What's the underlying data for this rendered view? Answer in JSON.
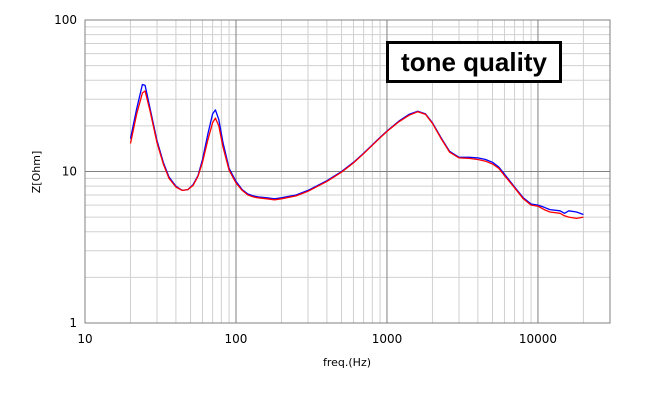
{
  "chart_data": {
    "type": "line",
    "title": "",
    "annotation": "tone quality",
    "xlabel": "freq.(Hz)",
    "ylabel": "Z[Ohm]",
    "xscale": "log",
    "yscale": "log",
    "xlim": [
      10,
      30000
    ],
    "ylim": [
      1,
      100
    ],
    "xticks": [
      10,
      100,
      1000,
      10000
    ],
    "xtick_labels": [
      "10",
      "100",
      "1000",
      "10000"
    ],
    "yticks": [
      1,
      10,
      100
    ],
    "ytick_labels": [
      "1",
      "10",
      "100"
    ],
    "grid": true,
    "legend": "none",
    "series": [
      {
        "color": "#0000ff",
        "x": [
          20,
          22,
          24,
          25,
          27,
          30,
          33,
          36,
          40,
          44,
          48,
          52,
          56,
          60,
          65,
          70,
          73,
          77,
          82,
          90,
          100,
          110,
          120,
          130,
          140,
          160,
          180,
          200,
          250,
          300,
          400,
          500,
          600,
          700,
          800,
          900,
          1000,
          1200,
          1400,
          1600,
          1800,
          2000,
          2300,
          2600,
          3000,
          3500,
          4000,
          4500,
          5000,
          5500,
          6000,
          7000,
          8000,
          9000,
          10000,
          11000,
          12000,
          14000,
          15000,
          16000,
          18000,
          20000
        ],
        "y": [
          16.5,
          26,
          37.5,
          37,
          26,
          16,
          11.5,
          9.2,
          8.0,
          7.5,
          7.6,
          8.2,
          9.4,
          12.0,
          17.5,
          24.0,
          25.5,
          22,
          15.5,
          10.5,
          8.6,
          7.6,
          7.1,
          6.9,
          6.8,
          6.7,
          6.6,
          6.7,
          7.0,
          7.5,
          8.7,
          10.0,
          11.5,
          13.2,
          15.0,
          16.8,
          18.5,
          21.5,
          23.8,
          25.0,
          24.0,
          21.0,
          16.5,
          13.6,
          12.4,
          12.4,
          12.3,
          12.0,
          11.5,
          10.7,
          9.6,
          7.9,
          6.7,
          6.1,
          6.0,
          5.8,
          5.6,
          5.5,
          5.3,
          5.5,
          5.4,
          5.2
        ]
      },
      {
        "color": "#ff0000",
        "x": [
          20,
          22,
          24,
          25,
          27,
          30,
          33,
          36,
          40,
          44,
          48,
          52,
          56,
          60,
          65,
          70,
          73,
          77,
          82,
          90,
          100,
          110,
          120,
          130,
          140,
          160,
          180,
          200,
          250,
          300,
          400,
          500,
          600,
          700,
          800,
          900,
          1000,
          1200,
          1400,
          1600,
          1800,
          2000,
          2300,
          2600,
          3000,
          3500,
          4000,
          4500,
          5000,
          5500,
          6000,
          7000,
          8000,
          9000,
          10000,
          11000,
          12000,
          14000,
          15000,
          16000,
          18000,
          20000
        ],
        "y": [
          15.3,
          24,
          33,
          34,
          25,
          15.5,
          11.2,
          9.0,
          7.9,
          7.5,
          7.6,
          8.1,
          9.3,
          11.5,
          16.0,
          21.0,
          22.5,
          20,
          14.5,
          10.2,
          8.4,
          7.5,
          7.0,
          6.8,
          6.7,
          6.6,
          6.5,
          6.6,
          6.9,
          7.4,
          8.6,
          9.9,
          11.4,
          13.1,
          14.9,
          16.7,
          18.4,
          21.3,
          23.5,
          24.8,
          23.8,
          20.8,
          16.3,
          13.4,
          12.3,
          12.2,
          12.0,
          11.7,
          11.2,
          10.5,
          9.4,
          7.8,
          6.6,
          6.0,
          5.9,
          5.6,
          5.4,
          5.3,
          5.1,
          5.0,
          4.9,
          5.0
        ]
      }
    ]
  }
}
